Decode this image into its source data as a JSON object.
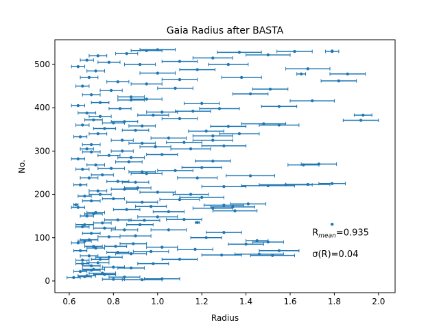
{
  "chart_data": {
    "type": "scatter",
    "title": "Gaia Radius after BASTA",
    "xlabel": "Radius",
    "ylabel": "No.",
    "xlim": [
      0.535,
      2.075
    ],
    "ylim": [
      -27,
      557
    ],
    "xticks": [
      "0.6",
      "0.8",
      "1.0",
      "1.2",
      "1.4",
      "1.6",
      "1.8",
      "2.0"
    ],
    "yticks": [
      "0",
      "100",
      "200",
      "300",
      "400",
      "500"
    ],
    "grid": false,
    "legend": "none",
    "color": "#1f77b4",
    "annotations": [
      {
        "base": "R",
        "sub": "mean",
        "rest": "=0.935",
        "x": 1.7,
        "y": 105
      },
      {
        "text": "σ(R)=0.04",
        "x": 1.7,
        "y": 55
      }
    ],
    "series": [
      {
        "marker": "point",
        "error_bars": "horizontal",
        "points": [
          [
            0.62,
            8,
            0.03
          ],
          [
            0.68,
            12,
            0.04
          ],
          [
            0.75,
            18,
            0.06
          ],
          [
            0.65,
            22,
            0.03
          ],
          [
            0.71,
            27,
            0.05
          ],
          [
            0.93,
            3,
            0.09
          ],
          [
            1.02,
            5,
            0.08
          ],
          [
            0.8,
            4,
            0.05
          ],
          [
            0.85,
            9,
            0.07
          ],
          [
            1.29,
            60,
            0.09
          ],
          [
            1.46,
            62,
            0.11
          ],
          [
            1.52,
            59,
            0.1
          ],
          [
            1.55,
            70,
            0.09
          ],
          [
            1.17,
            73,
            0.08
          ],
          [
            1.4,
            85,
            0.08
          ],
          [
            1.5,
            90,
            0.07
          ],
          [
            1.45,
            93,
            0.05
          ],
          [
            1.22,
            100,
            0.07
          ],
          [
            1.3,
            112,
            0.08
          ],
          [
            0.7,
            35,
            0.04
          ],
          [
            0.73,
            42,
            0.05
          ],
          [
            0.66,
            48,
            0.03
          ],
          [
            0.78,
            55,
            0.06
          ],
          [
            0.88,
            63,
            0.07
          ],
          [
            0.97,
            68,
            0.08
          ],
          [
            0.72,
            76,
            0.04
          ],
          [
            0.81,
            80,
            0.05
          ],
          [
            0.64,
            88,
            0.03
          ],
          [
            0.69,
            95,
            0.04
          ],
          [
            0.9,
            104,
            0.07
          ],
          [
            1.05,
            118,
            0.08
          ],
          [
            0.76,
            122,
            0.05
          ],
          [
            0.67,
            130,
            0.04
          ],
          [
            1.18,
            135,
            0.01
          ],
          [
            0.82,
            141,
            0.06
          ],
          [
            1.0,
            148,
            0.09
          ],
          [
            0.71,
            155,
            0.04
          ],
          [
            1.35,
            162,
            0.1
          ],
          [
            1.25,
            168,
            0.09
          ],
          [
            1.34,
            171,
            0.1
          ],
          [
            1.3,
            175,
            0.09
          ],
          [
            1.41,
            178,
            0.08
          ],
          [
            0.93,
            182,
            0.07
          ],
          [
            1.1,
            188,
            0.09
          ],
          [
            1.2,
            193,
            0.1
          ],
          [
            0.63,
            176,
            0.01
          ],
          [
            0.74,
            200,
            0.05
          ],
          [
            1.0,
            205,
            0.08
          ],
          [
            0.85,
            212,
            0.06
          ],
          [
            1.3,
            218,
            0.1
          ],
          [
            1.68,
            223,
            0.1
          ],
          [
            1.79,
            225,
            0.06
          ],
          [
            1.58,
            222,
            0.12
          ],
          [
            1.5,
            220,
            0.12
          ],
          [
            1.42,
            243,
            0.11
          ],
          [
            1.18,
            238,
            0.09
          ],
          [
            0.95,
            248,
            0.07
          ],
          [
            1.08,
            255,
            0.08
          ],
          [
            0.79,
            260,
            0.06
          ],
          [
            1.73,
            270,
            0.08
          ],
          [
            1.66,
            268,
            0.07
          ],
          [
            1.25,
            277,
            0.08
          ],
          [
            0.88,
            285,
            0.06
          ],
          [
            1.02,
            292,
            0.07
          ],
          [
            0.7,
            298,
            0.04
          ],
          [
            1.15,
            305,
            0.09
          ],
          [
            1.3,
            312,
            0.1
          ],
          [
            0.93,
            318,
            0.06
          ],
          [
            1.25,
            325,
            0.09
          ],
          [
            1.05,
            330,
            0.08
          ],
          [
            1.37,
            340,
            0.09
          ],
          [
            1.22,
            346,
            0.08
          ],
          [
            0.76,
            352,
            0.05
          ],
          [
            1.48,
            363,
            0.1
          ],
          [
            1.55,
            360,
            0.09
          ],
          [
            1.32,
            357,
            0.08
          ],
          [
            0.85,
            368,
            0.06
          ],
          [
            1.1,
            375,
            0.08
          ],
          [
            1.93,
            383,
            0.04
          ],
          [
            1.92,
            371,
            0.08
          ],
          [
            0.74,
            380,
            0.05
          ],
          [
            1.02,
            390,
            0.07
          ],
          [
            1.28,
            398,
            0.09
          ],
          [
            1.55,
            403,
            0.08
          ],
          [
            1.7,
            416,
            0.1
          ],
          [
            1.2,
            410,
            0.08
          ],
          [
            0.95,
            420,
            0.07
          ],
          [
            1.51,
            443,
            0.08
          ],
          [
            1.42,
            432,
            0.08
          ],
          [
            1.38,
            470,
            0.09
          ],
          [
            1.65,
            478,
            0.02
          ],
          [
            1.86,
            478,
            0.08
          ],
          [
            1.82,
            462,
            0.08
          ],
          [
            1.68,
            490,
            0.1
          ],
          [
            1.32,
            500,
            0.09
          ],
          [
            1.18,
            488,
            0.08
          ],
          [
            1.5,
            522,
            0.1
          ],
          [
            1.79,
            530,
            0.03
          ],
          [
            1.62,
            530,
            0.08
          ],
          [
            1.37,
            528,
            0.1
          ],
          [
            1.0,
            534,
            0.08
          ],
          [
            0.86,
            525,
            0.05
          ],
          [
            0.73,
            520,
            0.04
          ],
          [
            0.68,
            510,
            0.03
          ],
          [
            0.78,
            505,
            0.05
          ],
          [
            0.64,
            495,
            0.03
          ],
          [
            0.92,
            500,
            0.07
          ],
          [
            1.1,
            507,
            0.08
          ],
          [
            0.72,
            485,
            0.04
          ],
          [
            1.0,
            480,
            0.08
          ],
          [
            0.69,
            470,
            0.04
          ],
          [
            0.82,
            460,
            0.05
          ],
          [
            0.95,
            455,
            0.07
          ],
          [
            0.66,
            450,
            0.03
          ],
          [
            0.79,
            440,
            0.05
          ],
          [
            1.08,
            445,
            0.08
          ],
          [
            0.7,
            430,
            0.04
          ],
          [
            0.88,
            425,
            0.06
          ],
          [
            0.74,
            412,
            0.04
          ],
          [
            0.64,
            405,
            0.03
          ],
          [
            0.83,
            398,
            0.05
          ],
          [
            0.68,
            388,
            0.04
          ],
          [
            0.98,
            383,
            0.07
          ],
          [
            0.71,
            372,
            0.04
          ],
          [
            0.8,
            365,
            0.05
          ],
          [
            0.66,
            360,
            0.03
          ],
          [
            0.9,
            348,
            0.06
          ],
          [
            0.73,
            340,
            0.04
          ],
          [
            0.65,
            333,
            0.03
          ],
          [
            0.84,
            325,
            0.05
          ],
          [
            0.7,
            315,
            0.04
          ],
          [
            0.99,
            310,
            0.07
          ],
          [
            0.68,
            305,
            0.03
          ],
          [
            0.78,
            290,
            0.05
          ],
          [
            0.64,
            282,
            0.03
          ],
          [
            0.87,
            275,
            0.06
          ],
          [
            0.72,
            268,
            0.04
          ],
          [
            0.66,
            258,
            0.03
          ],
          [
            0.93,
            252,
            0.06
          ],
          [
            0.75,
            245,
            0.05
          ],
          [
            0.69,
            238,
            0.04
          ],
          [
            0.82,
            230,
            0.05
          ],
          [
            0.65,
            222,
            0.03
          ],
          [
            0.91,
            215,
            0.06
          ],
          [
            0.73,
            208,
            0.04
          ],
          [
            0.67,
            196,
            0.03
          ],
          [
            0.8,
            190,
            0.05
          ],
          [
            0.7,
            185,
            0.04
          ],
          [
            0.64,
            170,
            0.03
          ],
          [
            0.86,
            165,
            0.06
          ],
          [
            0.72,
            158,
            0.04
          ],
          [
            0.68,
            150,
            0.03
          ],
          [
            0.94,
            140,
            0.07
          ],
          [
            0.75,
            134,
            0.04
          ],
          [
            0.66,
            125,
            0.03
          ],
          [
            0.85,
            118,
            0.06
          ],
          [
            0.7,
            110,
            0.04
          ],
          [
            0.78,
            102,
            0.05
          ],
          [
            0.67,
            92,
            0.03
          ],
          [
            0.89,
            86,
            0.06
          ],
          [
            0.71,
            80,
            0.04
          ],
          [
            0.65,
            70,
            0.03
          ],
          [
            0.82,
            66,
            0.05
          ],
          [
            0.69,
            58,
            0.04
          ],
          [
            0.74,
            50,
            0.04
          ],
          [
            0.66,
            40,
            0.03
          ],
          [
            0.8,
            32,
            0.05
          ],
          [
            0.7,
            25,
            0.04
          ],
          [
            0.76,
            15,
            0.05
          ],
          [
            0.67,
            10,
            0.03
          ],
          [
            0.88,
            30,
            0.06
          ],
          [
            0.98,
            40,
            0.07
          ],
          [
            1.1,
            50,
            0.08
          ],
          [
            1.02,
            78,
            0.07
          ],
          [
            0.92,
            130,
            0.06
          ],
          [
            1.12,
            142,
            0.08
          ],
          [
            1.05,
            160,
            0.07
          ],
          [
            0.97,
            172,
            0.07
          ],
          [
            1.15,
            200,
            0.08
          ],
          [
            0.9,
            228,
            0.06
          ],
          [
            1.2,
            262,
            0.09
          ],
          [
            0.84,
            300,
            0.05
          ],
          [
            1.12,
            320,
            0.08
          ],
          [
            1.25,
            335,
            0.09
          ],
          [
            0.93,
            358,
            0.06
          ],
          [
            1.16,
            392,
            0.08
          ],
          [
            0.88,
            418,
            0.06
          ],
          [
            1.1,
            465,
            0.08
          ],
          [
            1.25,
            515,
            0.09
          ],
          [
            0.95,
            532,
            0.07
          ]
        ]
      },
      {
        "marker": "point",
        "error_bars": "none",
        "points": [
          [
            1.79,
            131
          ],
          [
            1.79,
            531
          ]
        ]
      }
    ]
  }
}
